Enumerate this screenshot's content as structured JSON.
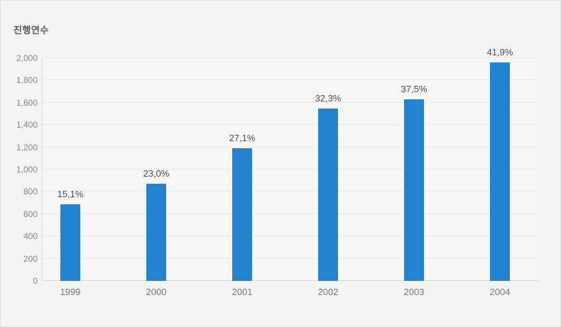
{
  "chart_data": {
    "type": "bar",
    "title": "진행연수",
    "categories": [
      "1999",
      "2000",
      "2001",
      "2002",
      "2003",
      "2004"
    ],
    "values": [
      690,
      870,
      1190,
      1550,
      1630,
      1960
    ],
    "bar_labels": [
      "15,1%",
      "23,0%",
      "27,1%",
      "32,3%",
      "37,5%",
      "41,9%"
    ],
    "ylim": [
      0,
      2000
    ],
    "ytick_step": 200,
    "ytick_labels": [
      "0",
      "200",
      "400",
      "600",
      "800",
      "1,000",
      "1,200",
      "1,400",
      "1,600",
      "1,800",
      "2,000"
    ],
    "grid": "horizontal",
    "legend": "none",
    "bar_color": "#2383d1",
    "background_color": "#f4f4f4",
    "label_color": "#4a4a4a",
    "axis_label_color": "#858585"
  }
}
